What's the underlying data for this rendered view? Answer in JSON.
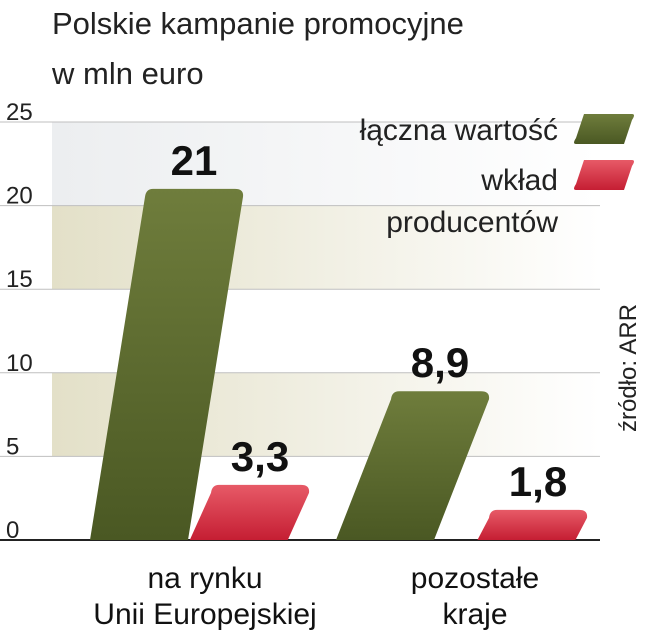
{
  "chart_data": {
    "type": "bar",
    "title": "Polskie kampanie promocyjne",
    "subtitle": "w mln euro",
    "categories": [
      "na rynku|Unii Europejskiej",
      "pozostałe|kraje"
    ],
    "series": [
      {
        "name": "łączna wartość",
        "values": [
          21,
          8.9
        ],
        "labels": [
          "21",
          "8,9"
        ],
        "color": "#5b6a2c"
      },
      {
        "name": "wkład|producentów",
        "values": [
          3.3,
          1.8
        ],
        "labels": [
          "3,3",
          "1,8"
        ],
        "color": "#d12c3e"
      }
    ],
    "highlight_label_color": "#c8102e",
    "yticks": [
      "0",
      "5",
      "10",
      "15",
      "20",
      "25"
    ],
    "ylim": [
      0,
      25
    ],
    "source": "źródło: ARR",
    "legend_position": "top-right",
    "grid": "alternating horizontal bands"
  }
}
